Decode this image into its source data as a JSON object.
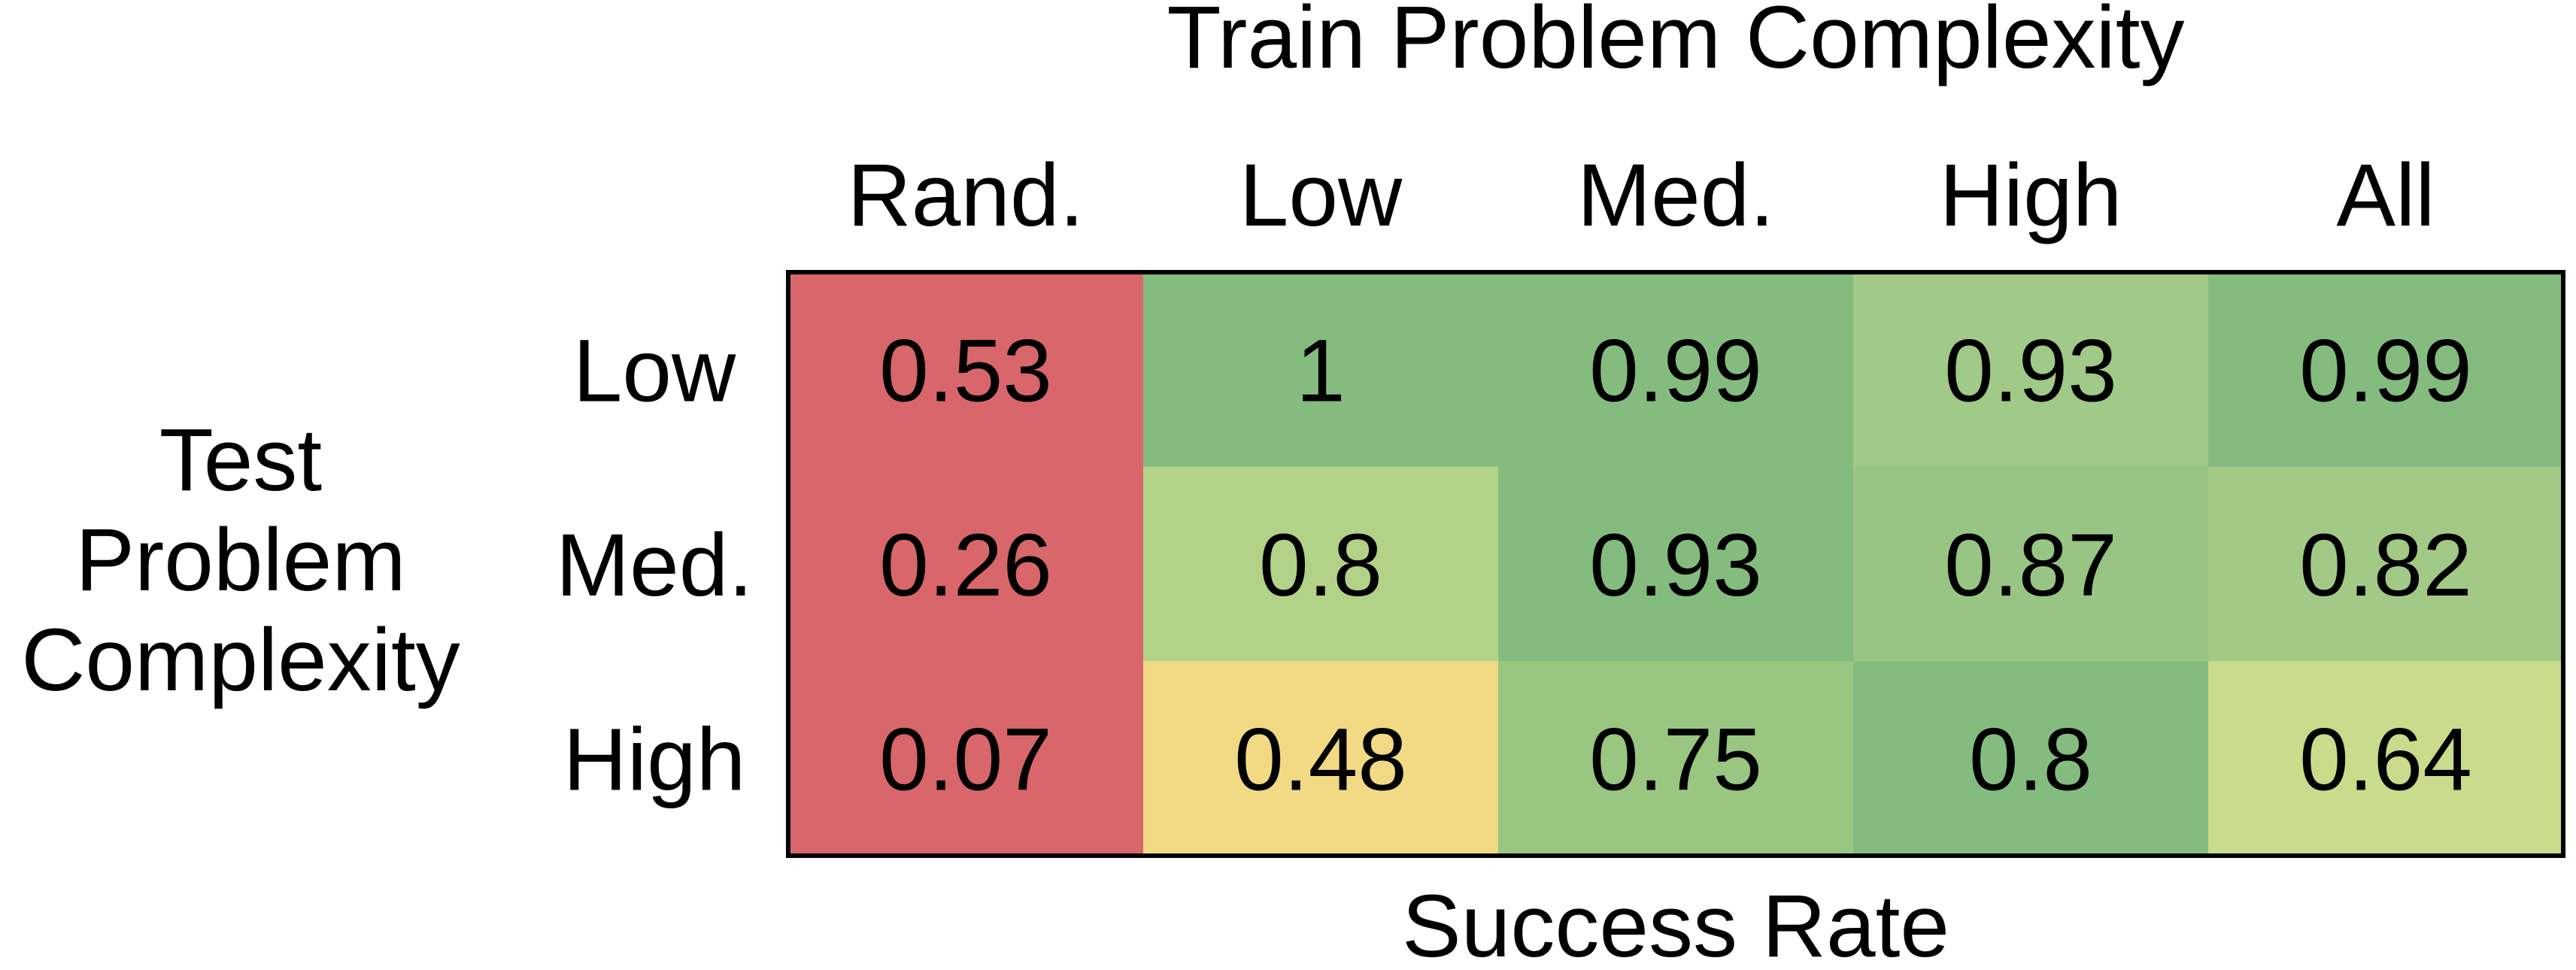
{
  "chart_data": {
    "type": "heatmap",
    "title": "Train Problem Complexity",
    "xlabel": "Success Rate",
    "ylabel": [
      "Test",
      "Problem",
      "Complexity"
    ],
    "columns": [
      "Rand.",
      "Low",
      "Med.",
      "High",
      "All"
    ],
    "rows": [
      "Low",
      "Med.",
      "High"
    ],
    "values": [
      [
        0.53,
        1,
        0.99,
        0.93,
        0.99
      ],
      [
        0.26,
        0.8,
        0.93,
        0.87,
        0.82
      ],
      [
        0.07,
        0.48,
        0.75,
        0.8,
        0.64
      ]
    ],
    "value_labels": [
      [
        "0.53",
        "1",
        "0.99",
        "0.93",
        "0.99"
      ],
      [
        "0.26",
        "0.8",
        "0.93",
        "0.87",
        "0.82"
      ],
      [
        "0.07",
        "0.48",
        "0.75",
        "0.8",
        "0.64"
      ]
    ],
    "cell_colors": [
      [
        "#d9666a",
        "#84bc7f",
        "#84bc7f",
        "#a1c987",
        "#84bc7f"
      ],
      [
        "#d9666a",
        "#b2d288",
        "#84bc7f",
        "#98c583",
        "#a2ca86"
      ],
      [
        "#d9666a",
        "#f2da85",
        "#99c680",
        "#84bc7f",
        "#c8dc8b"
      ]
    ],
    "grid": false,
    "legend": "none"
  }
}
